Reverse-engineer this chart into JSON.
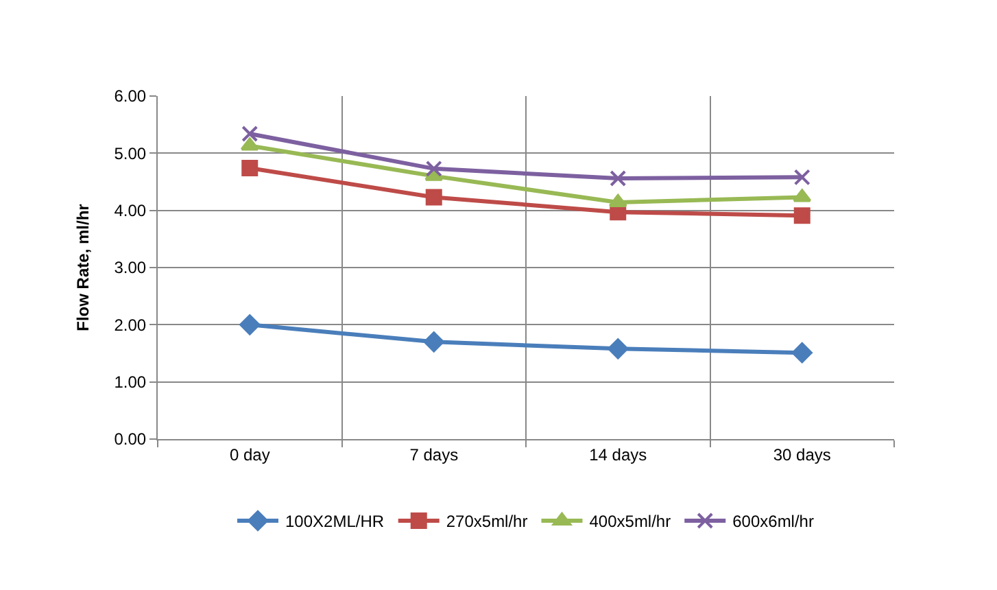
{
  "chart_data": {
    "type": "line",
    "ylabel": "Flow Rate, ml/hr",
    "categories": [
      "0 day",
      "7 days",
      "14 days",
      "30 days"
    ],
    "series": [
      {
        "name": "100X2ML/HR",
        "color": "#4a7ebb",
        "marker": "diamond",
        "values": [
          2.0,
          1.7,
          1.58,
          1.51
        ]
      },
      {
        "name": "270x5ml/hr",
        "color": "#be4b48",
        "marker": "square",
        "values": [
          4.74,
          4.23,
          3.97,
          3.91
        ]
      },
      {
        "name": "400x5ml/hr",
        "color": "#98b954",
        "marker": "triangle",
        "values": [
          5.13,
          4.6,
          4.14,
          4.23
        ]
      },
      {
        "name": "600x6ml/hr",
        "color": "#7d60a0",
        "marker": "cross",
        "values": [
          5.34,
          4.73,
          4.56,
          4.58
        ]
      }
    ],
    "ylim": [
      0,
      6
    ],
    "yticks": [
      {
        "value": 0,
        "label": "0.00"
      },
      {
        "value": 1,
        "label": "1.00"
      },
      {
        "value": 2,
        "label": "2.00"
      },
      {
        "value": 3,
        "label": "3.00"
      },
      {
        "value": 4,
        "label": "4.00"
      },
      {
        "value": 5,
        "label": "5.00"
      },
      {
        "value": 6,
        "label": "6.00"
      }
    ],
    "grid": true,
    "legend": "bottom",
    "line_style": "solid"
  }
}
